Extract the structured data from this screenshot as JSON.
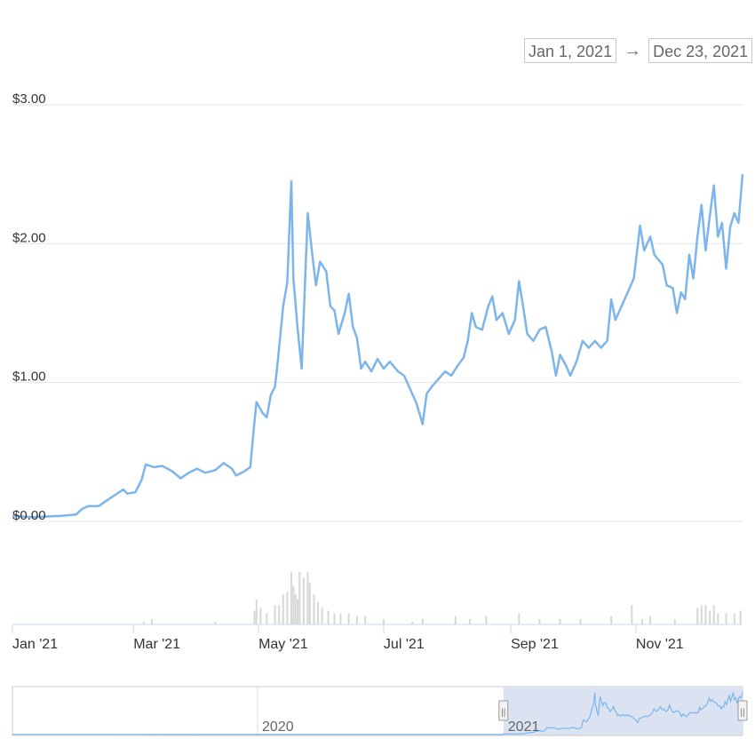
{
  "date_range": {
    "from": "Jan 1, 2021",
    "arrow": "→",
    "to": "Dec 23, 2021"
  },
  "colors": {
    "line": "#7cb5ec",
    "volume": "#d7d7d7",
    "grid": "#e6e6e6",
    "nav_selection": "#dbe2f2"
  },
  "chart_data": {
    "type": "line",
    "y_axis": {
      "ticks": [
        "$0.00",
        "$1.00",
        "$2.00",
        "$3.00"
      ],
      "tick_values": [
        0,
        1,
        2,
        3
      ],
      "ylim": [
        0,
        3
      ]
    },
    "x_axis": {
      "tick_labels": [
        "Jan '21",
        "Mar '21",
        "May '21",
        "Jul '21",
        "Sep '21",
        "Nov '21"
      ],
      "tick_dates": [
        "2021-01-01",
        "2021-03-01",
        "2021-05-01",
        "2021-07-01",
        "2021-09-01",
        "2021-11-01"
      ],
      "xlim": [
        "2021-01-01",
        "2021-12-23"
      ]
    },
    "grid": true,
    "series": [
      {
        "points": [
          [
            "2021-01-01",
            0.04
          ],
          [
            "2021-01-10",
            0.03
          ],
          [
            "2021-01-25",
            0.04
          ],
          [
            "2021-02-01",
            0.05
          ],
          [
            "2021-02-04",
            0.09
          ],
          [
            "2021-02-07",
            0.11
          ],
          [
            "2021-02-12",
            0.11
          ],
          [
            "2021-02-16",
            0.15
          ],
          [
            "2021-02-20",
            0.19
          ],
          [
            "2021-02-24",
            0.23
          ],
          [
            "2021-02-26",
            0.2
          ],
          [
            "2021-03-02",
            0.21
          ],
          [
            "2021-03-05",
            0.3
          ],
          [
            "2021-03-07",
            0.41
          ],
          [
            "2021-03-11",
            0.39
          ],
          [
            "2021-03-15",
            0.4
          ],
          [
            "2021-03-20",
            0.36
          ],
          [
            "2021-03-24",
            0.31
          ],
          [
            "2021-03-28",
            0.35
          ],
          [
            "2021-04-01",
            0.38
          ],
          [
            "2021-04-05",
            0.35
          ],
          [
            "2021-04-10",
            0.37
          ],
          [
            "2021-04-14",
            0.42
          ],
          [
            "2021-04-18",
            0.38
          ],
          [
            "2021-04-20",
            0.33
          ],
          [
            "2021-04-24",
            0.36
          ],
          [
            "2021-04-27",
            0.39
          ],
          [
            "2021-04-29",
            0.72
          ],
          [
            "2021-04-30",
            0.86
          ],
          [
            "2021-05-03",
            0.78
          ],
          [
            "2021-05-05",
            0.75
          ],
          [
            "2021-05-07",
            0.91
          ],
          [
            "2021-05-09",
            0.97
          ],
          [
            "2021-05-10",
            1.1
          ],
          [
            "2021-05-13",
            1.55
          ],
          [
            "2021-05-15",
            1.72
          ],
          [
            "2021-05-17",
            2.45
          ],
          [
            "2021-05-18",
            1.75
          ],
          [
            "2021-05-20",
            1.4
          ],
          [
            "2021-05-22",
            1.1
          ],
          [
            "2021-05-24",
            1.85
          ],
          [
            "2021-05-25",
            2.22
          ],
          [
            "2021-05-27",
            1.95
          ],
          [
            "2021-05-29",
            1.7
          ],
          [
            "2021-05-31",
            1.87
          ],
          [
            "2021-06-03",
            1.8
          ],
          [
            "2021-06-05",
            1.55
          ],
          [
            "2021-06-07",
            1.52
          ],
          [
            "2021-06-09",
            1.35
          ],
          [
            "2021-06-12",
            1.5
          ],
          [
            "2021-06-14",
            1.64
          ],
          [
            "2021-06-16",
            1.4
          ],
          [
            "2021-06-18",
            1.32
          ],
          [
            "2021-06-20",
            1.1
          ],
          [
            "2021-06-22",
            1.15
          ],
          [
            "2021-06-25",
            1.08
          ],
          [
            "2021-06-28",
            1.17
          ],
          [
            "2021-07-01",
            1.1
          ],
          [
            "2021-07-04",
            1.15
          ],
          [
            "2021-07-08",
            1.08
          ],
          [
            "2021-07-11",
            1.05
          ],
          [
            "2021-07-14",
            0.95
          ],
          [
            "2021-07-17",
            0.85
          ],
          [
            "2021-07-20",
            0.7
          ],
          [
            "2021-07-22",
            0.92
          ],
          [
            "2021-07-25",
            0.98
          ],
          [
            "2021-07-28",
            1.03
          ],
          [
            "2021-07-31",
            1.08
          ],
          [
            "2021-08-03",
            1.05
          ],
          [
            "2021-08-06",
            1.12
          ],
          [
            "2021-08-09",
            1.18
          ],
          [
            "2021-08-11",
            1.3
          ],
          [
            "2021-08-13",
            1.5
          ],
          [
            "2021-08-15",
            1.4
          ],
          [
            "2021-08-18",
            1.38
          ],
          [
            "2021-08-21",
            1.55
          ],
          [
            "2021-08-23",
            1.62
          ],
          [
            "2021-08-25",
            1.45
          ],
          [
            "2021-08-28",
            1.5
          ],
          [
            "2021-08-31",
            1.35
          ],
          [
            "2021-09-03",
            1.45
          ],
          [
            "2021-09-05",
            1.73
          ],
          [
            "2021-09-07",
            1.55
          ],
          [
            "2021-09-09",
            1.35
          ],
          [
            "2021-09-12",
            1.3
          ],
          [
            "2021-09-15",
            1.38
          ],
          [
            "2021-09-18",
            1.4
          ],
          [
            "2021-09-21",
            1.22
          ],
          [
            "2021-09-23",
            1.05
          ],
          [
            "2021-09-25",
            1.2
          ],
          [
            "2021-09-28",
            1.12
          ],
          [
            "2021-09-30",
            1.05
          ],
          [
            "2021-10-03",
            1.15
          ],
          [
            "2021-10-06",
            1.3
          ],
          [
            "2021-10-09",
            1.25
          ],
          [
            "2021-10-12",
            1.3
          ],
          [
            "2021-10-15",
            1.25
          ],
          [
            "2021-10-18",
            1.3
          ],
          [
            "2021-10-20",
            1.6
          ],
          [
            "2021-10-22",
            1.45
          ],
          [
            "2021-10-25",
            1.55
          ],
          [
            "2021-10-28",
            1.65
          ],
          [
            "2021-10-31",
            1.75
          ],
          [
            "2021-11-03",
            2.13
          ],
          [
            "2021-11-05",
            1.95
          ],
          [
            "2021-11-08",
            2.05
          ],
          [
            "2021-11-10",
            1.92
          ],
          [
            "2021-11-14",
            1.85
          ],
          [
            "2021-11-16",
            1.7
          ],
          [
            "2021-11-19",
            1.68
          ],
          [
            "2021-11-21",
            1.5
          ],
          [
            "2021-11-23",
            1.65
          ],
          [
            "2021-11-25",
            1.6
          ],
          [
            "2021-11-27",
            1.92
          ],
          [
            "2021-11-29",
            1.75
          ],
          [
            "2021-12-01",
            2.05
          ],
          [
            "2021-12-03",
            2.28
          ],
          [
            "2021-12-05",
            1.95
          ],
          [
            "2021-12-07",
            2.2
          ],
          [
            "2021-12-09",
            2.42
          ],
          [
            "2021-12-11",
            2.05
          ],
          [
            "2021-12-13",
            2.15
          ],
          [
            "2021-12-15",
            1.82
          ],
          [
            "2021-12-17",
            2.12
          ],
          [
            "2021-12-19",
            2.22
          ],
          [
            "2021-12-21",
            2.15
          ],
          [
            "2021-12-23",
            2.5
          ]
        ]
      }
    ],
    "volume": [
      [
        "2021-03-06",
        0.05
      ],
      [
        "2021-03-10",
        0.1
      ],
      [
        "2021-04-10",
        0.05
      ],
      [
        "2021-04-29",
        0.25
      ],
      [
        "2021-04-30",
        0.45
      ],
      [
        "2021-05-02",
        0.3
      ],
      [
        "2021-05-05",
        0.2
      ],
      [
        "2021-05-09",
        0.35
      ],
      [
        "2021-05-11",
        0.35
      ],
      [
        "2021-05-13",
        0.55
      ],
      [
        "2021-05-15",
        0.6
      ],
      [
        "2021-05-17",
        0.95
      ],
      [
        "2021-05-18",
        0.7
      ],
      [
        "2021-05-19",
        0.55
      ],
      [
        "2021-05-20",
        0.45
      ],
      [
        "2021-05-21",
        0.95
      ],
      [
        "2021-05-23",
        0.85
      ],
      [
        "2021-05-25",
        0.95
      ],
      [
        "2021-05-26",
        0.75
      ],
      [
        "2021-05-28",
        0.55
      ],
      [
        "2021-05-30",
        0.4
      ],
      [
        "2021-06-01",
        0.3
      ],
      [
        "2021-06-04",
        0.25
      ],
      [
        "2021-06-07",
        0.2
      ],
      [
        "2021-06-10",
        0.2
      ],
      [
        "2021-06-14",
        0.2
      ],
      [
        "2021-06-18",
        0.15
      ],
      [
        "2021-06-22",
        0.15
      ],
      [
        "2021-07-01",
        0.1
      ],
      [
        "2021-07-15",
        0.05
      ],
      [
        "2021-07-20",
        0.1
      ],
      [
        "2021-08-05",
        0.15
      ],
      [
        "2021-08-12",
        0.1
      ],
      [
        "2021-08-20",
        0.15
      ],
      [
        "2021-09-05",
        0.2
      ],
      [
        "2021-09-15",
        0.1
      ],
      [
        "2021-09-25",
        0.1
      ],
      [
        "2021-10-05",
        0.1
      ],
      [
        "2021-10-20",
        0.15
      ],
      [
        "2021-10-30",
        0.35
      ],
      [
        "2021-11-04",
        0.1
      ],
      [
        "2021-11-08",
        0.15
      ],
      [
        "2021-11-20",
        0.1
      ],
      [
        "2021-12-01",
        0.3
      ],
      [
        "2021-12-03",
        0.35
      ],
      [
        "2021-12-05",
        0.35
      ],
      [
        "2021-12-07",
        0.25
      ],
      [
        "2021-12-09",
        0.35
      ],
      [
        "2021-12-11",
        0.2
      ],
      [
        "2021-12-15",
        0.2
      ],
      [
        "2021-12-19",
        0.2
      ],
      [
        "2021-12-22",
        0.25
      ]
    ]
  },
  "navigator": {
    "labels": [
      "2020",
      "2021"
    ],
    "handle_glyph": "||",
    "selected_range": [
      "2021-01-01",
      "2021-12-23"
    ]
  }
}
